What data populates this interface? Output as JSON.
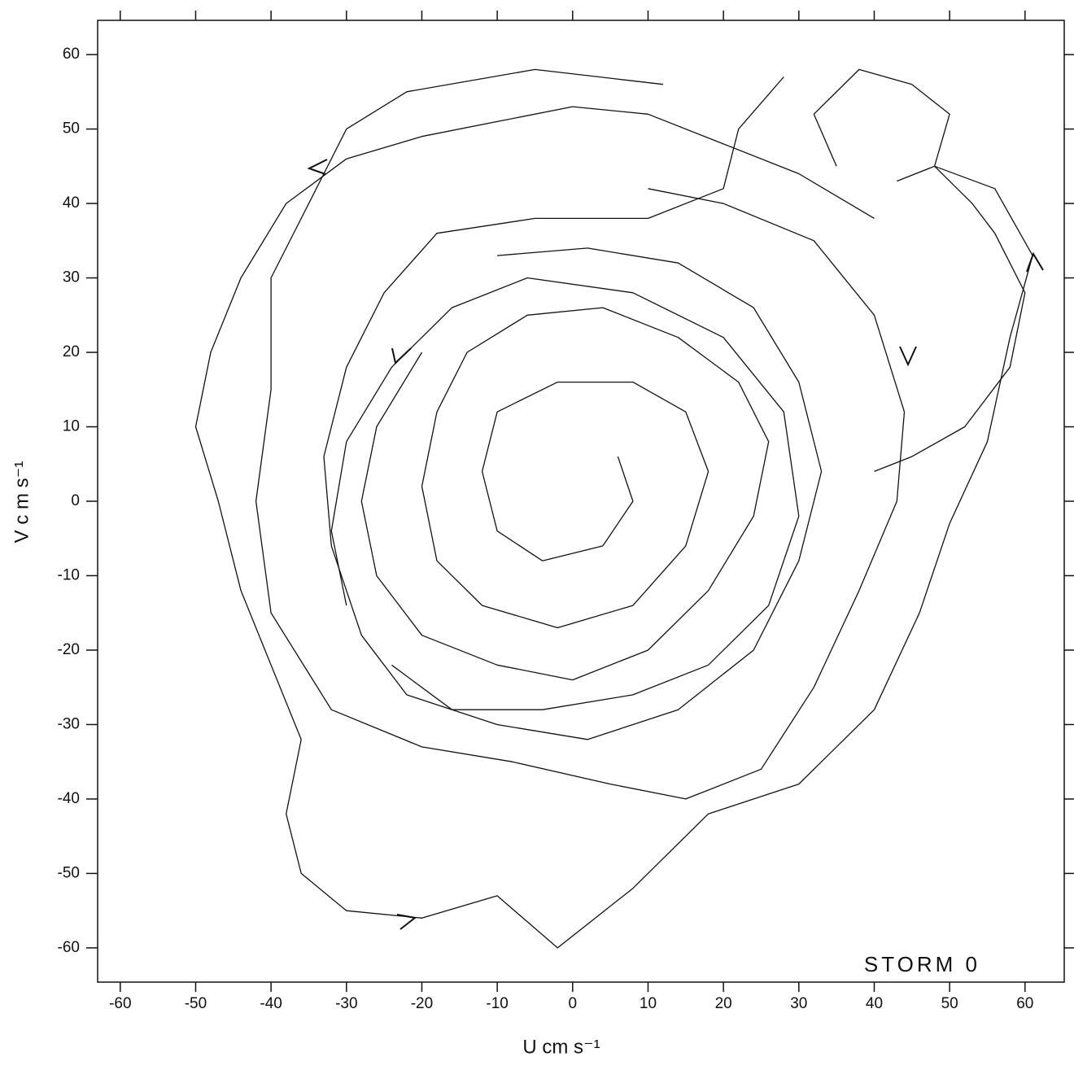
{
  "chart_data": {
    "type": "line",
    "x_label": "U  cm s⁻¹",
    "y_label": "V c m s⁻¹",
    "annotation": "STORM   0",
    "color": "#111111",
    "xlim": [
      -63,
      65.2
    ],
    "ylim": [
      -64.6,
      64.6
    ],
    "xticks": [
      -60,
      -50,
      -40,
      -30,
      -20,
      -10,
      0,
      10,
      20,
      30,
      40,
      50,
      60
    ],
    "yticks": [
      -60,
      -50,
      -40,
      -30,
      -20,
      -10,
      0,
      10,
      20,
      30,
      40,
      50,
      60
    ],
    "series": [
      {
        "x": [
          40,
          30,
          20,
          10,
          0,
          -10,
          -20,
          -30,
          -38,
          -44,
          -48,
          -50,
          -47,
          -44,
          -40,
          -36,
          -38,
          -36,
          -30,
          -20,
          -10,
          -2,
          8,
          18,
          30,
          40,
          46,
          50,
          55,
          58,
          61,
          56,
          48,
          43
        ],
        "values": [
          38,
          44,
          48,
          52,
          53,
          51,
          49,
          46,
          40,
          30,
          20,
          10,
          0,
          -12,
          -22,
          -32,
          -42,
          -50,
          -55,
          -56,
          -53,
          -60,
          -52,
          -42,
          -38,
          -28,
          -15,
          -3,
          8,
          22,
          33,
          42,
          45,
          43
        ]
      },
      {
        "x": [
          12,
          -5,
          -22,
          -30,
          -35,
          -40,
          -40,
          -42,
          -40,
          -32,
          -20,
          -8,
          5,
          15,
          25,
          32,
          38,
          43,
          44,
          40,
          32,
          20,
          10
        ],
        "values": [
          56,
          58,
          55,
          50,
          40,
          30,
          15,
          0,
          -15,
          -28,
          -33,
          -35,
          -38,
          -40,
          -36,
          -25,
          -12,
          0,
          12,
          25,
          35,
          40,
          42
        ]
      },
      {
        "x": [
          28,
          22,
          20,
          10,
          -5,
          -18,
          -25,
          -30,
          -33,
          -32,
          -28,
          -22,
          -10,
          2,
          14,
          24,
          30,
          33,
          30,
          24,
          14,
          2,
          -10
        ],
        "values": [
          57,
          50,
          42,
          38,
          38,
          36,
          28,
          18,
          6,
          -6,
          -18,
          -26,
          -30,
          -32,
          -28,
          -20,
          -8,
          4,
          16,
          26,
          32,
          34,
          33
        ]
      },
      {
        "x": [
          -20,
          -26,
          -28,
          -26,
          -20,
          -10,
          0,
          10,
          18,
          24,
          26,
          22,
          14,
          4,
          -6,
          -14,
          -18,
          -20,
          -18,
          -12,
          -2,
          8,
          15,
          18,
          15,
          8,
          -2,
          -10,
          -12,
          -10,
          -4,
          4,
          8,
          6
        ],
        "values": [
          20,
          10,
          0,
          -10,
          -18,
          -22,
          -24,
          -20,
          -12,
          -2,
          8,
          16,
          22,
          26,
          25,
          20,
          12,
          2,
          -8,
          -14,
          -17,
          -14,
          -6,
          4,
          12,
          16,
          16,
          12,
          4,
          -4,
          -8,
          -6,
          0,
          6
        ]
      },
      {
        "x": [
          -24,
          -16,
          -4,
          8,
          18,
          26,
          30,
          28,
          20,
          8,
          -6,
          -16,
          -24,
          -30,
          -32,
          -30
        ],
        "values": [
          -22,
          -28,
          -28,
          -26,
          -22,
          -14,
          -2,
          12,
          22,
          28,
          30,
          26,
          18,
          8,
          -4,
          -14
        ]
      },
      {
        "x": [
          35,
          32,
          38,
          45,
          50,
          48,
          53,
          56,
          60,
          58,
          52,
          45,
          40
        ],
        "values": [
          45,
          52,
          58,
          56,
          52,
          45,
          40,
          36,
          28,
          18,
          10,
          6,
          4
        ]
      }
    ]
  }
}
